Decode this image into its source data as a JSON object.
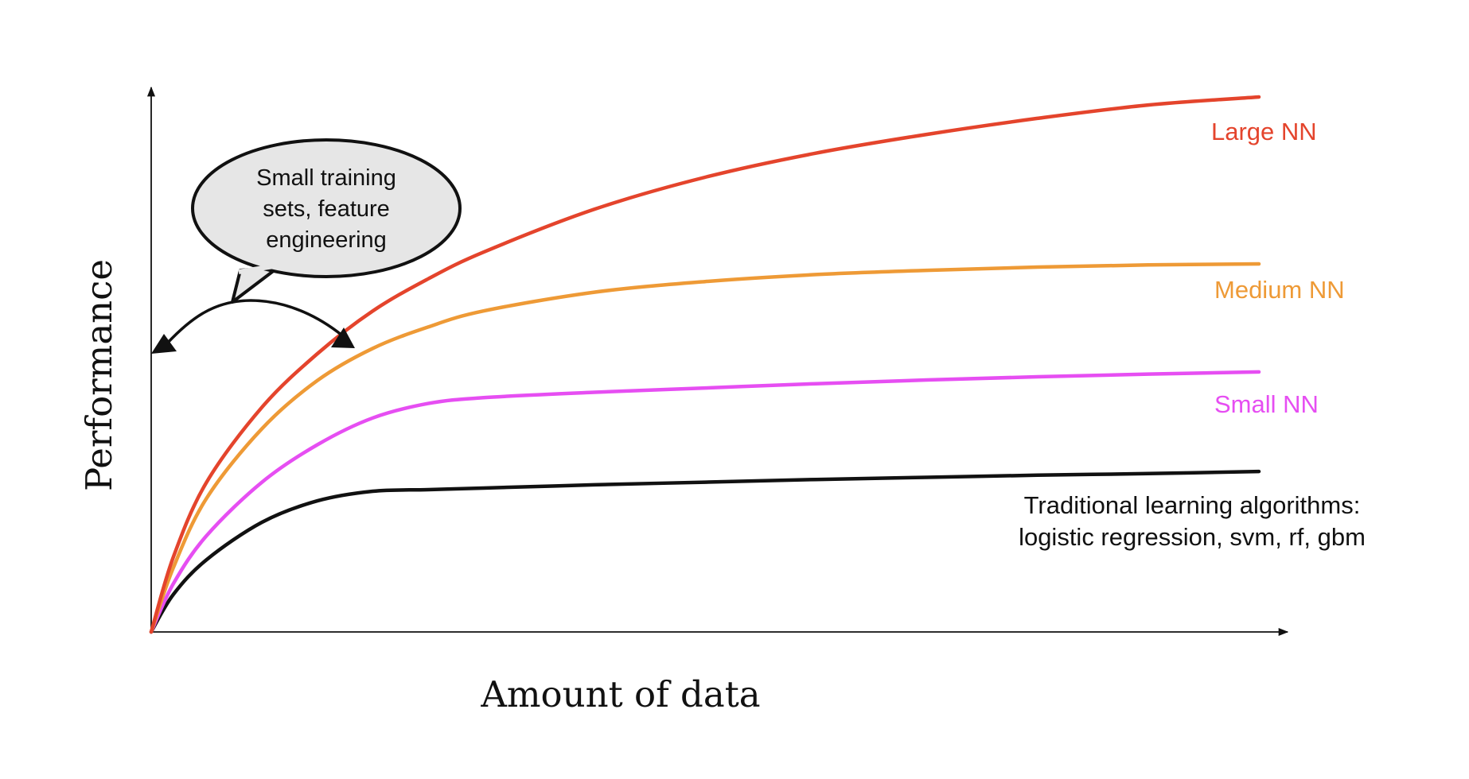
{
  "chart_data": {
    "type": "line",
    "title": "",
    "xlabel": "Amount of data",
    "ylabel": "Performance",
    "xlim": [
      0,
      100
    ],
    "ylim": [
      0,
      100
    ],
    "grid": false,
    "series": [
      {
        "name": "Large NN",
        "color": "#e4442c",
        "x": [
          0,
          2,
          5,
          10,
          15,
          20,
          25,
          30,
          40,
          50,
          60,
          70,
          80,
          90,
          100
        ],
        "y": [
          0,
          14,
          28,
          42,
          52,
          60,
          66,
          71,
          79,
          85,
          89.5,
          93,
          96,
          98.5,
          100
        ]
      },
      {
        "name": "Medium NN",
        "color": "#ee9a36",
        "x": [
          0,
          2,
          5,
          10,
          15,
          20,
          25,
          30,
          40,
          50,
          60,
          70,
          80,
          90,
          100
        ],
        "y": [
          0,
          12,
          25,
          38,
          47,
          53,
          57,
          60,
          63.5,
          65.5,
          66.8,
          67.6,
          68.2,
          68.6,
          68.8
        ]
      },
      {
        "name": "Small NN",
        "color": "#e64ef2",
        "x": [
          0,
          2,
          5,
          10,
          15,
          20,
          25,
          30,
          40,
          50,
          60,
          70,
          80,
          90,
          100
        ],
        "y": [
          0,
          9,
          18,
          28,
          35,
          40,
          42.7,
          43.8,
          44.8,
          45.6,
          46.4,
          47.1,
          47.7,
          48.2,
          48.6
        ]
      },
      {
        "name": "Traditional learning algorithms: logistic regression, svm, rf, gbm",
        "color": "#111111",
        "x": [
          0,
          2,
          5,
          10,
          15,
          20,
          25,
          30,
          40,
          50,
          60,
          70,
          80,
          90,
          100
        ],
        "y": [
          0,
          7,
          13.5,
          20.5,
          24.5,
          26.3,
          26.6,
          26.9,
          27.5,
          28.0,
          28.5,
          28.9,
          29.3,
          29.6,
          30.0
        ]
      }
    ],
    "legend_labels": {
      "large": "Large NN",
      "medium": "Medium NN",
      "small": "Small NN",
      "traditional_line1": "Traditional learning algorithms:",
      "traditional_line2": "logistic regression, svm, rf, gbm"
    },
    "annotation": {
      "line1": "Small training",
      "line2": "sets, feature",
      "line3": "engineering"
    }
  }
}
